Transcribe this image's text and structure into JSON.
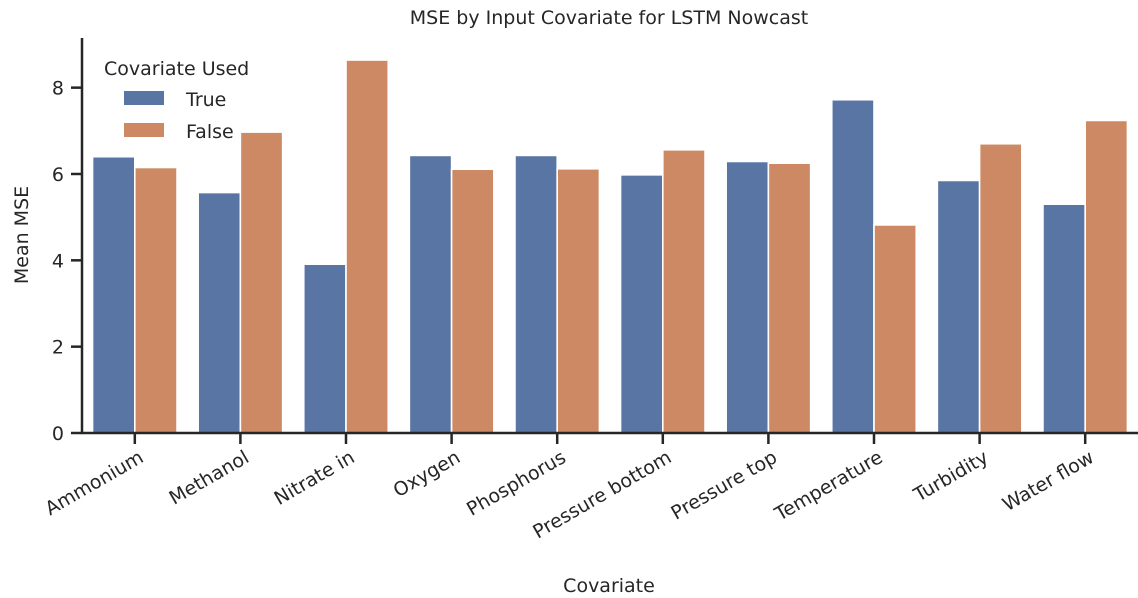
{
  "chart_data": {
    "type": "bar",
    "title": "MSE by Input Covariate for LSTM Nowcast",
    "xlabel": "Covariate",
    "ylabel": "Mean MSE",
    "categories": [
      "Ammonium",
      "Methanol",
      "Nitrate in",
      "Oxygen",
      "Phosphorus",
      "Pressure bottom",
      "Pressure top",
      "Temperature",
      "Turbidity",
      "Water flow"
    ],
    "series": [
      {
        "name": "True",
        "color": "#5975a4",
        "values": [
          6.4,
          5.57,
          3.91,
          6.43,
          6.43,
          5.98,
          6.29,
          7.72,
          5.85,
          5.3
        ]
      },
      {
        "name": "False",
        "color": "#cc8963",
        "values": [
          6.15,
          6.97,
          8.64,
          6.11,
          6.12,
          6.56,
          6.25,
          4.82,
          6.7,
          7.24
        ]
      }
    ],
    "legend": {
      "title": "Covariate Used",
      "placement": "top-left"
    },
    "ylim": [
      0,
      9.15
    ],
    "yticks": [
      0,
      2,
      4,
      6,
      8
    ],
    "grid": false
  }
}
